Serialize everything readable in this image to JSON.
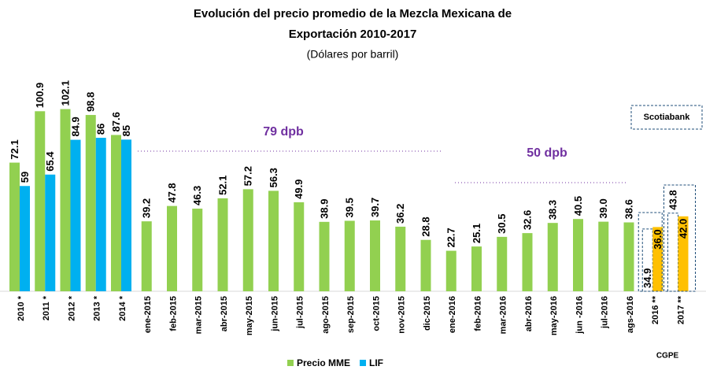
{
  "chart_data": {
    "type": "bar",
    "title": [
      "Evolución del precio promedio de la Mezcla Mexicana de",
      "Exportación 2010-2017"
    ],
    "subtitle": "(Dólares por barril)",
    "categories": [
      "2010 *",
      "2011 *",
      "2012 *",
      "2013 *",
      "2014 *",
      "ene-2015",
      "feb-2015",
      "mar-2015",
      "abr-2015",
      "may-2015",
      "jun-2015",
      "jul-2015",
      "ago-2015",
      "sep-2015",
      "oct-2015",
      "nov-2015",
      "dic-2015",
      "ene-2016",
      "feb-2016",
      "mar-2016",
      "abr-2016",
      "may-2016",
      "jun -2016",
      "jul-2016",
      "ags-2016",
      "2016 **",
      "2017 **"
    ],
    "series": [
      {
        "name": "Precio MME",
        "color": "#92d050",
        "values": [
          72.1,
          100.9,
          102.1,
          98.8,
          87.6,
          39.2,
          47.8,
          46.3,
          52.1,
          57.2,
          56.3,
          49.9,
          38.9,
          39.5,
          39.7,
          36.2,
          28.8,
          22.7,
          25.1,
          30.5,
          32.6,
          38.3,
          40.5,
          39.0,
          38.6,
          null,
          null
        ],
        "value_labels": [
          "72.1",
          "100.9",
          "102.1",
          "98.8",
          "87.6",
          "39.2",
          "47.8",
          "46.3",
          "52.1",
          "57.2",
          "56.3",
          "49.9",
          "38.9",
          "39.5",
          "39.7",
          "36.2",
          "28.8",
          "22.7",
          "25.1",
          "30.5",
          "32.6",
          "38.3",
          "40.5",
          "39.0",
          "38.6",
          null,
          null
        ]
      },
      {
        "name": "LIF",
        "color": "#00b0f0",
        "values": [
          59,
          65.4,
          84.9,
          86,
          85,
          null,
          null,
          null,
          null,
          null,
          null,
          null,
          null,
          null,
          null,
          null,
          null,
          null,
          null,
          null,
          null,
          null,
          null,
          null,
          null,
          null,
          null
        ]
      },
      {
        "name": "Scotiabank",
        "color": "#1f4e79",
        "style": "dashed",
        "values": [
          null,
          null,
          null,
          null,
          null,
          null,
          null,
          null,
          null,
          null,
          null,
          null,
          null,
          null,
          null,
          null,
          null,
          null,
          null,
          null,
          null,
          null,
          null,
          null,
          null,
          34.9,
          43.8
        ]
      },
      {
        "name": "CGPE",
        "color": "#ffc000",
        "values": [
          null,
          null,
          null,
          null,
          null,
          null,
          null,
          null,
          null,
          null,
          null,
          null,
          null,
          null,
          null,
          null,
          null,
          null,
          null,
          null,
          null,
          null,
          null,
          null,
          null,
          36.0,
          42.0
        ],
        "value_labels": [
          null,
          null,
          null,
          null,
          null,
          null,
          null,
          null,
          null,
          null,
          null,
          null,
          null,
          null,
          null,
          null,
          null,
          null,
          null,
          null,
          null,
          null,
          null,
          null,
          null,
          "36.0",
          "42.0"
        ]
      }
    ],
    "ylim": [
      0,
      105
    ],
    "annotations": [
      {
        "text": "79 dpb"
      },
      {
        "text": "50 dpb"
      }
    ]
  }
}
